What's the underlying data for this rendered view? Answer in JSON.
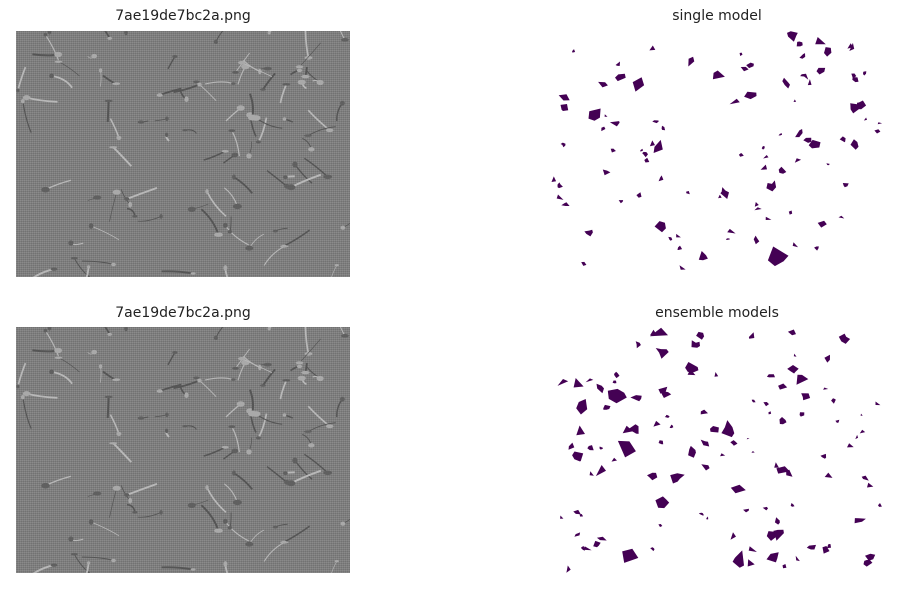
{
  "panels": {
    "top_left": {
      "title": "7ae19de7bc2a.png"
    },
    "top_right": {
      "title": "single model"
    },
    "bottom_left": {
      "title": "7ae19de7bc2a.png"
    },
    "bottom_right": {
      "title": "ensemble models"
    }
  },
  "colors": {
    "mask_fill": "#440154",
    "background": "#ffffff",
    "image_gray": "#7d7d7d"
  }
}
